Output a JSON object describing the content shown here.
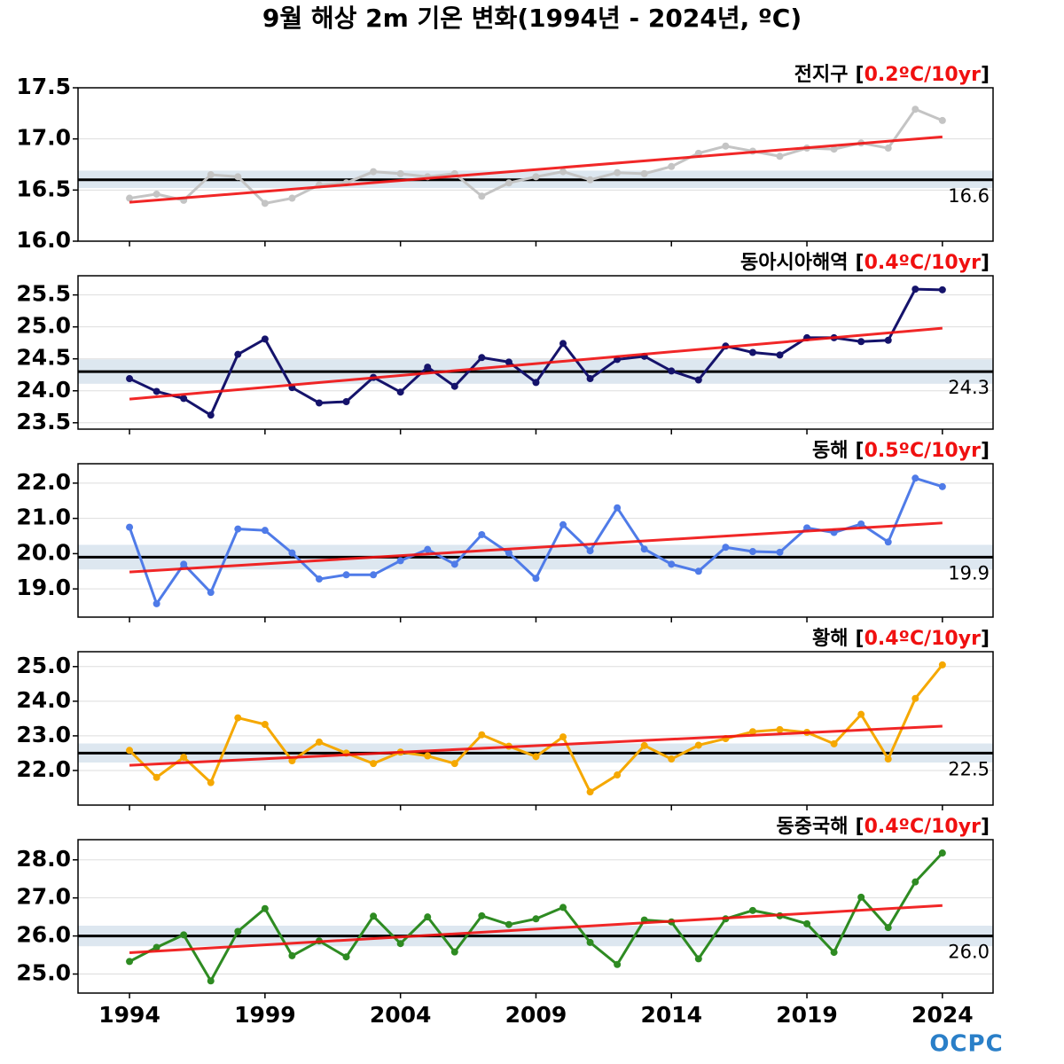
{
  "title": "9월 해상 2m 기온 변화(1994년 - 2024년, ºC)",
  "logo": "OCPC",
  "chart_data": [
    {
      "type": "line",
      "region": "전지구",
      "label_open": "[",
      "trend_label": "0.2ºC/10yr",
      "label_close": "]",
      "color": "#c4c4c4",
      "x": [
        1994,
        1995,
        1996,
        1997,
        1998,
        1999,
        2000,
        2001,
        2002,
        2003,
        2004,
        2005,
        2006,
        2007,
        2008,
        2009,
        2010,
        2011,
        2012,
        2013,
        2014,
        2015,
        2016,
        2017,
        2018,
        2019,
        2020,
        2021,
        2022,
        2023,
        2024
      ],
      "values": [
        16.42,
        16.46,
        16.4,
        16.65,
        16.63,
        16.37,
        16.42,
        16.55,
        16.57,
        16.68,
        16.66,
        16.63,
        16.66,
        16.44,
        16.57,
        16.63,
        16.68,
        16.6,
        16.67,
        16.66,
        16.73,
        16.86,
        16.93,
        16.88,
        16.83,
        16.91,
        16.9,
        16.96,
        16.91,
        17.29,
        17.18
      ],
      "mean": 16.6,
      "band": [
        16.52,
        16.69
      ],
      "trend": [
        16.38,
        17.02
      ],
      "xlim": [
        1992.1,
        2025.87
      ],
      "xticks": [
        1994,
        1999,
        2004,
        2009,
        2014,
        2019,
        2024
      ],
      "ylim": [
        16.0,
        17.5
      ],
      "yticks": [
        {
          "value": 16,
          "label": "16.0"
        },
        16.5,
        {
          "value": 17,
          "label": "17.0"
        },
        17.5
      ],
      "grid": true
    },
    {
      "type": "line",
      "region": "동아시아해역",
      "label_open": "[",
      "trend_label": "0.4ºC/10yr",
      "label_close": "]",
      "color": "#15136b",
      "x": [
        1994,
        1995,
        1996,
        1997,
        1998,
        1999,
        2000,
        2001,
        2002,
        2003,
        2004,
        2005,
        2006,
        2007,
        2008,
        2009,
        2010,
        2011,
        2012,
        2013,
        2014,
        2015,
        2016,
        2017,
        2018,
        2019,
        2020,
        2021,
        2022,
        2023,
        2024
      ],
      "values": [
        24.19,
        23.99,
        23.88,
        23.62,
        24.57,
        24.81,
        24.05,
        23.81,
        23.83,
        24.21,
        23.98,
        24.37,
        24.07,
        24.52,
        24.45,
        24.13,
        24.74,
        24.19,
        24.49,
        24.54,
        24.31,
        24.17,
        24.7,
        24.6,
        24.56,
        24.83,
        24.83,
        24.77,
        24.79,
        25.59,
        25.58
      ],
      "mean": 24.3,
      "band": [
        24.11,
        24.49
      ],
      "trend": [
        23.87,
        24.98
      ],
      "xlim": [
        1992.1,
        2025.87
      ],
      "xticks": [
        1994,
        1999,
        2004,
        2009,
        2014,
        2019,
        2024
      ],
      "ylim": [
        23.4,
        25.8
      ],
      "yticks": [
        23.5,
        {
          "value": 24,
          "label": "24.0"
        },
        24.5,
        {
          "value": 25,
          "label": "25.0"
        },
        25.5
      ],
      "grid": true
    },
    {
      "type": "line",
      "region": "동해",
      "label_open": "[",
      "trend_label": "0.5ºC/10yr",
      "label_close": "]",
      "color": "#4f7be8",
      "x": [
        1994,
        1995,
        1996,
        1997,
        1998,
        1999,
        2000,
        2001,
        2002,
        2003,
        2004,
        2005,
        2006,
        2007,
        2008,
        2009,
        2010,
        2011,
        2012,
        2013,
        2014,
        2015,
        2016,
        2017,
        2018,
        2019,
        2020,
        2021,
        2022,
        2023,
        2024
      ],
      "values": [
        20.75,
        18.58,
        19.7,
        18.9,
        20.7,
        20.66,
        20.02,
        19.28,
        19.4,
        19.4,
        19.8,
        20.12,
        19.7,
        20.54,
        20.02,
        19.3,
        20.82,
        20.08,
        21.3,
        20.13,
        19.7,
        19.5,
        20.18,
        20.06,
        20.04,
        20.73,
        20.6,
        20.84,
        20.33,
        22.14,
        21.9
      ],
      "mean": 19.9,
      "band": [
        19.55,
        20.25
      ],
      "trend": [
        19.48,
        20.87
      ],
      "xlim": [
        1992.1,
        2025.87
      ],
      "xticks": [
        1994,
        1999,
        2004,
        2009,
        2014,
        2019,
        2024
      ],
      "ylim": [
        18.2,
        22.55
      ],
      "yticks": [
        {
          "value": 19,
          "label": "19.0"
        },
        {
          "value": 20,
          "label": "20.0"
        },
        {
          "value": 21,
          "label": "21.0"
        },
        {
          "value": 22,
          "label": "22.0"
        }
      ],
      "grid": true
    },
    {
      "type": "line",
      "region": "황해",
      "label_open": "[",
      "trend_label": "0.4ºC/10yr",
      "label_close": "]",
      "color": "#f5a800",
      "x": [
        1994,
        1995,
        1996,
        1997,
        1998,
        1999,
        2000,
        2001,
        2002,
        2003,
        2004,
        2005,
        2006,
        2007,
        2008,
        2009,
        2010,
        2011,
        2012,
        2013,
        2014,
        2015,
        2016,
        2017,
        2018,
        2019,
        2020,
        2021,
        2022,
        2023,
        2024
      ],
      "values": [
        22.58,
        21.8,
        22.38,
        21.65,
        23.52,
        23.33,
        22.28,
        22.82,
        22.5,
        22.2,
        22.53,
        22.42,
        22.2,
        23.03,
        22.7,
        22.4,
        22.97,
        21.38,
        21.87,
        22.72,
        22.33,
        22.73,
        22.92,
        23.12,
        23.18,
        23.1,
        22.77,
        23.62,
        22.33,
        24.08,
        25.05
      ],
      "mean": 22.5,
      "band": [
        22.23,
        22.78
      ],
      "trend": [
        22.15,
        23.28
      ],
      "xlim": [
        1992.1,
        2025.87
      ],
      "xticks": [
        1994,
        1999,
        2004,
        2009,
        2014,
        2019,
        2024
      ],
      "ylim": [
        21.0,
        25.43
      ],
      "yticks": [
        {
          "value": 22,
          "label": "22.0"
        },
        {
          "value": 23,
          "label": "23.0"
        },
        {
          "value": 24,
          "label": "24.0"
        },
        {
          "value": 25,
          "label": "25.0"
        }
      ],
      "grid": true
    },
    {
      "type": "line",
      "region": "동중국해",
      "label_open": "[",
      "trend_label": "0.4ºC/10yr",
      "label_close": "]",
      "color": "#2e8b22",
      "x": [
        1994,
        1995,
        1996,
        1997,
        1998,
        1999,
        2000,
        2001,
        2002,
        2003,
        2004,
        2005,
        2006,
        2007,
        2008,
        2009,
        2010,
        2011,
        2012,
        2013,
        2014,
        2015,
        2016,
        2017,
        2018,
        2019,
        2020,
        2021,
        2022,
        2023,
        2024
      ],
      "values": [
        25.33,
        25.7,
        26.03,
        24.82,
        26.12,
        26.72,
        25.48,
        25.87,
        25.45,
        26.52,
        25.8,
        26.5,
        25.58,
        26.53,
        26.3,
        26.45,
        26.75,
        25.83,
        25.25,
        26.42,
        26.37,
        25.4,
        26.45,
        26.67,
        26.53,
        26.32,
        25.57,
        27.02,
        26.22,
        27.42,
        28.18
      ],
      "mean": {
        "value": 26,
        "label": "26.0"
      },
      "band": [
        25.73,
        26.27
      ],
      "trend": [
        25.56,
        26.8
      ],
      "xlim": [
        1992.1,
        2025.87
      ],
      "xticks": [
        1994,
        1999,
        2004,
        2009,
        2014,
        2019,
        2024
      ],
      "ylim": [
        24.5,
        28.53
      ],
      "yticks": [
        {
          "value": 25,
          "label": "25.0"
        },
        {
          "value": 26,
          "label": "26.0"
        },
        {
          "value": 27,
          "label": "27.0"
        },
        {
          "value": 28,
          "label": "28.0"
        }
      ],
      "grid": true
    }
  ]
}
